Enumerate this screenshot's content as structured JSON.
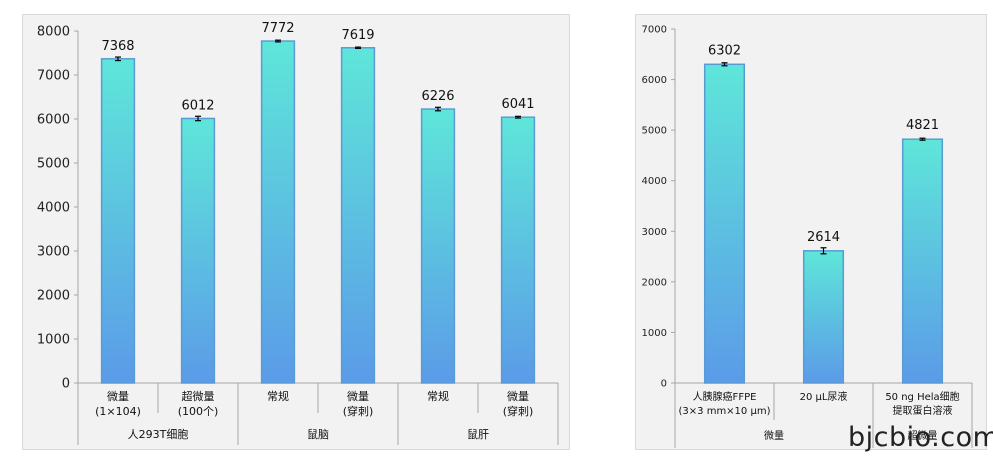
{
  "chart_data": [
    {
      "type": "bar",
      "ylim": [
        0,
        8000
      ],
      "yticks": [
        0,
        1000,
        2000,
        3000,
        4000,
        5000,
        6000,
        7000,
        8000
      ],
      "categories": [
        {
          "line1": "微量",
          "line2": "(1×104)"
        },
        {
          "line1": "超微量",
          "line2": "(100个)"
        },
        {
          "line1": "常规",
          "line2": ""
        },
        {
          "line1": "微量",
          "line2": "(穿刺)"
        },
        {
          "line1": "常规",
          "line2": ""
        },
        {
          "line1": "微量",
          "line2": "(穿刺)"
        }
      ],
      "values": [
        7368,
        6012,
        7772,
        7619,
        6226,
        6041
      ],
      "errors": [
        40,
        50,
        20,
        15,
        40,
        20
      ],
      "groups": [
        {
          "label": "人293T细胞",
          "span": 2
        },
        {
          "label": "鼠脑",
          "span": 2
        },
        {
          "label": "鼠肝",
          "span": 2
        }
      ]
    },
    {
      "type": "bar",
      "ylim": [
        0,
        7000
      ],
      "yticks": [
        0,
        1000,
        2000,
        3000,
        4000,
        5000,
        6000,
        7000
      ],
      "categories": [
        {
          "line1": "人胰腺癌FFPE",
          "line2": "(3×3 mm×10 μm)"
        },
        {
          "line1": "20 μL尿液",
          "line2": ""
        },
        {
          "line1": "50 ng Hela细胞",
          "line2": "提取蛋白溶液"
        }
      ],
      "values": [
        6302,
        2614,
        4821
      ],
      "errors": [
        30,
        60,
        20
      ],
      "groups": [
        {
          "label": "微量",
          "span": 2
        },
        {
          "label": "超微量",
          "span": 1
        }
      ]
    }
  ],
  "colors": {
    "bar_top": "#5ee6d9",
    "bar_bottom": "#5b9be8",
    "bar_edge": "#5b9bd5",
    "axis": "#a6a6a6"
  },
  "watermark": "bjcbio.com"
}
